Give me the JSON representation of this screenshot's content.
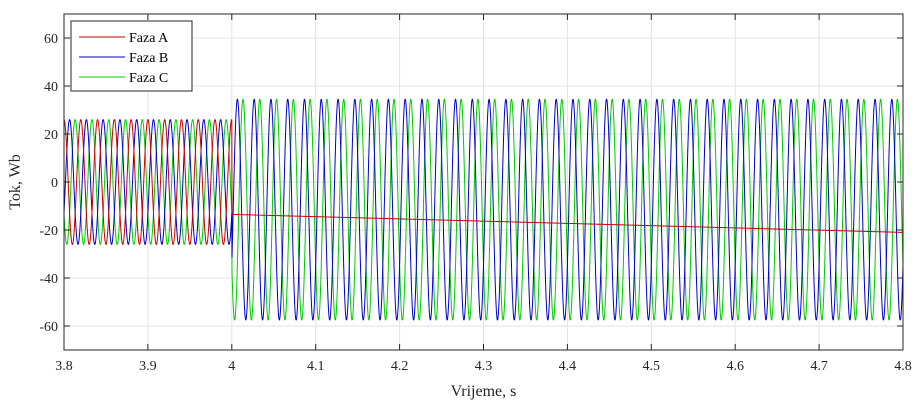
{
  "chart_data": {
    "type": "line",
    "title": "",
    "xlabel": "Vrijeme, s",
    "ylabel": "Tok, Wb",
    "xlim": [
      3.8,
      4.8
    ],
    "ylim": [
      -70,
      70
    ],
    "xticks": [
      3.8,
      3.9,
      4.0,
      4.1,
      4.2,
      4.3,
      4.4,
      4.5,
      4.6,
      4.7,
      4.8
    ],
    "xtick_labels": [
      "3.8",
      "3.9",
      "4",
      "4.1",
      "4.2",
      "4.3",
      "4.4",
      "4.5",
      "4.6",
      "4.7",
      "4.8"
    ],
    "yticks": [
      -60,
      -40,
      -20,
      0,
      20,
      40,
      60
    ],
    "ytick_labels": [
      "-60",
      "-40",
      "-20",
      "0",
      "20",
      "40",
      "60"
    ],
    "grid": true,
    "legend_position": "top-left",
    "series": [
      {
        "name": "Faza A",
        "color": "#cc0000",
        "description_before": {
          "shape": "sinusoid",
          "amplitude": 26,
          "offset": 0,
          "frequency_hz": 50,
          "phase_deg": 0
        },
        "description_after": {
          "shape": "slow decay",
          "start_value": -13.5,
          "end_value": -21
        }
      },
      {
        "name": "Faza B",
        "color": "#0000cc",
        "description_before": {
          "shape": "sinusoid",
          "amplitude": 26,
          "offset": 0,
          "frequency_hz": 50,
          "phase_deg": -120
        },
        "description_after": {
          "shape": "sinusoid",
          "amplitude": 46,
          "offset": -11.5,
          "frequency_hz": 50,
          "phase_deg": -120
        }
      },
      {
        "name": "Faza C",
        "color": "#00cc00",
        "description_before": {
          "shape": "sinusoid",
          "amplitude": 26,
          "offset": 0,
          "frequency_hz": 50,
          "phase_deg": 120
        },
        "description_after": {
          "shape": "sinusoid",
          "amplitude": 46,
          "offset": -11.5,
          "frequency_hz": 50,
          "phase_deg": 120
        }
      }
    ],
    "event_x": 4.0
  }
}
